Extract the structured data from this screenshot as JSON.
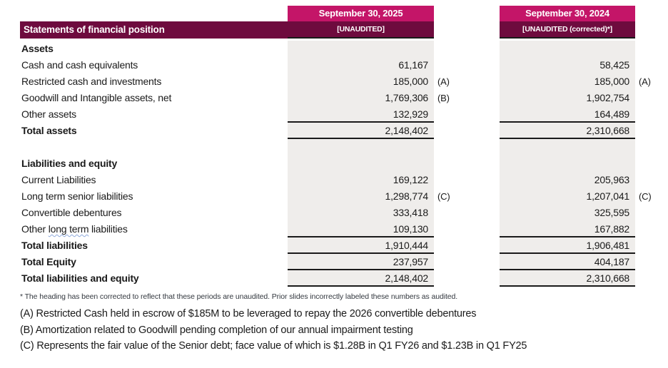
{
  "colors": {
    "header_pink": "#C41568",
    "header_maroon": "#6E0B3E",
    "column_gray": "#EFEDEB",
    "border_black": "#1A1A1A",
    "squiggle_blue": "#8FAADC"
  },
  "header": {
    "title": "Statements of financial position",
    "col_2025": {
      "date": "September 30, 2025",
      "status": "[UNAUDITED]"
    },
    "col_2024": {
      "date": "September 30, 2024",
      "status": "[UNAUDITED (corrected)*]"
    }
  },
  "table": {
    "rows": [
      {
        "label": "Assets"
      },
      {
        "label": "Cash and cash equivalents",
        "v2025": "61,167",
        "v2024": "58,425"
      },
      {
        "label": "Restricted cash and investments",
        "v2025": "185,000",
        "n2025": "(A)",
        "v2024": "185,000",
        "n2024": "(A)"
      },
      {
        "label": "Goodwill and Intangible assets, net",
        "v2025": "1,769,306",
        "n2025": "(B)",
        "v2024": "1,902,754"
      },
      {
        "label": "Other assets",
        "v2025": "132,929",
        "v2024": "164,489"
      },
      {
        "label": "Total assets",
        "v2025": "2,148,402",
        "v2024": "2,310,668"
      },
      {
        "label": ""
      },
      {
        "label": "Liabilities and equity"
      },
      {
        "label": "Current Liabilities",
        "v2025": "169,122",
        "v2024": "205,963"
      },
      {
        "label": "Long term senior liabilities",
        "v2025": "1,298,774",
        "n2025": "(C)",
        "v2024": "1,207,041",
        "n2024": "(C)"
      },
      {
        "label": "Convertible debentures",
        "v2025": "333,418",
        "v2024": "325,595"
      },
      {
        "label": "Other long term liabilities",
        "parts": [
          "Other ",
          "long term",
          " liabilities"
        ],
        "v2025": "109,130",
        "v2024": "167,882"
      },
      {
        "label": "Total liabilities",
        "v2025": "1,910,444",
        "v2024": "1,906,481"
      },
      {
        "label": "Total Equity",
        "v2025": "237,957",
        "v2024": "404,187"
      },
      {
        "label": "Total liabilities and equity",
        "v2025": "2,148,402",
        "v2024": "2,310,668"
      }
    ]
  },
  "footnotes": {
    "star": "* The heading has been corrected to reflect that these periods are unaudited. Prior slides incorrectly labeled these numbers as audited.",
    "a": "(A) Restricted Cash held in escrow of $185M to be leveraged to repay the 2026 convertible debentures",
    "b": "(B) Amortization related to Goodwill pending completion of our annual impairment testing",
    "c": "(C) Represents the fair value of the Senior debt; face value of which is $1.28B in Q1 FY26 and $1.23B in Q1 FY25"
  }
}
